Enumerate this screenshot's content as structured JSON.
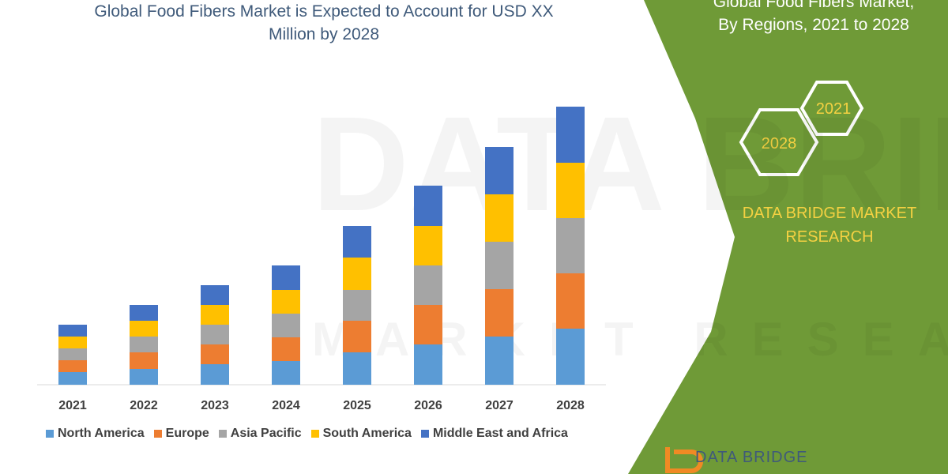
{
  "chart_data": {
    "type": "bar",
    "stacked": true,
    "title": "Global Food Fibers Market is Expected to Account for USD XX Million by 2028",
    "categories": [
      "2021",
      "2022",
      "2023",
      "2024",
      "2025",
      "2026",
      "2027",
      "2028"
    ],
    "series": [
      {
        "name": "North America",
        "color": "#5b9bd5",
        "values": [
          16,
          20,
          26,
          30,
          41,
          51,
          61,
          71
        ]
      },
      {
        "name": "Europe",
        "color": "#ed7d31",
        "values": [
          15,
          21,
          25,
          30,
          40,
          50,
          60,
          70
        ]
      },
      {
        "name": "Asia Pacific",
        "color": "#a5a5a5",
        "values": [
          15,
          20,
          25,
          30,
          39,
          50,
          60,
          70
        ]
      },
      {
        "name": "South America",
        "color": "#ffc000",
        "values": [
          15,
          20,
          25,
          30,
          41,
          50,
          60,
          70
        ]
      },
      {
        "name": "Middle East and Africa",
        "color": "#4472c4",
        "values": [
          15,
          20,
          25,
          31,
          40,
          51,
          60,
          71
        ]
      }
    ],
    "ylim": [
      0,
      360
    ]
  },
  "panel": {
    "title": [
      "Global Food Fibers Market,",
      "By Regions, 2021 to 2028"
    ],
    "hexagons": [
      "2021",
      "2028"
    ],
    "brand": "DATA BRIDGE MARKET RESEARCH",
    "logo": "DATA BRIDGE"
  },
  "watermark": [
    "DATA BRIDGE",
    "MARKET RESEARCH"
  ]
}
